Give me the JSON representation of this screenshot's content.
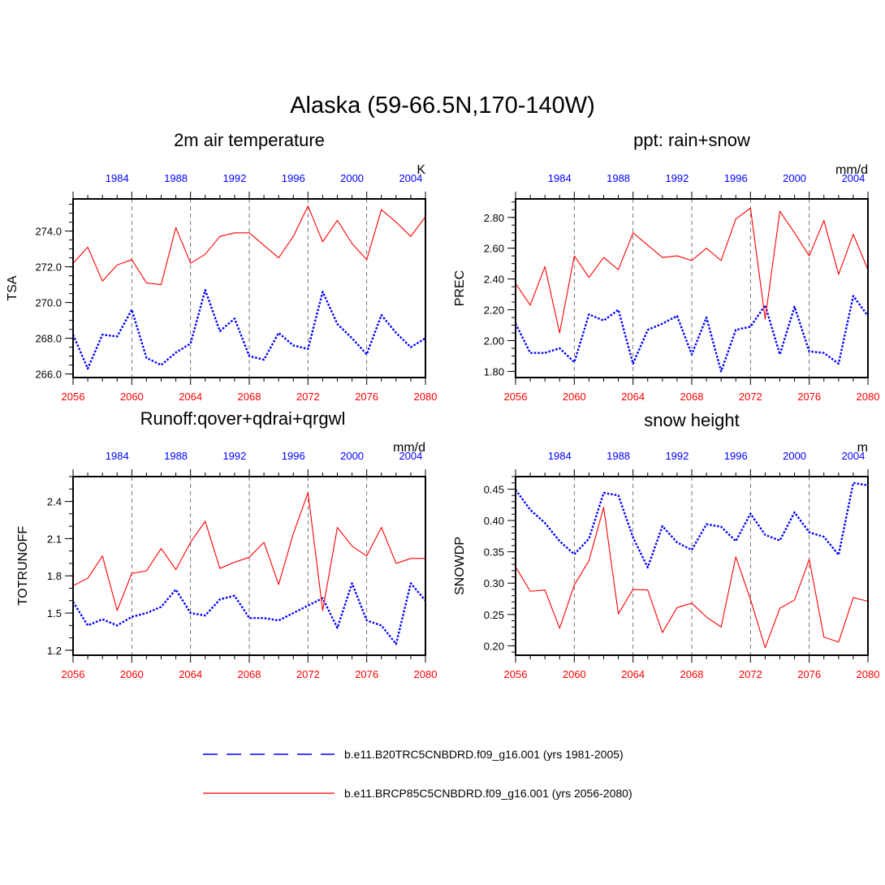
{
  "title": "Alaska (59-66.5N,170-140W)",
  "legend": [
    {
      "label": "b.e11.B20TRC5CNBDRD.f09_g16.001 (yrs 1981-2005)",
      "color": "#0000ff",
      "style": "dashed"
    },
    {
      "label": "b.e11.BRCP85C5CNBDRD.f09_g16.001 (yrs 2056-2080)",
      "color": "#ff0000",
      "style": "solid"
    }
  ],
  "chart_data": [
    {
      "type": "line",
      "title": "2m air temperature",
      "units": "K",
      "ylabel": "TSA",
      "ylim": [
        265.8,
        275.8
      ],
      "yticks": [
        266.0,
        268.0,
        270.0,
        272.0,
        274.0
      ],
      "ytick_labels": [
        "266.0",
        "268.0",
        "270.0",
        "272.0",
        "274.0"
      ],
      "yminor": 0.5,
      "x_bottom_labels": [
        "2056",
        "2060",
        "2064",
        "2068",
        "2072",
        "2076",
        "2080"
      ],
      "x_top_labels": [
        "1984",
        "1988",
        "1992",
        "1996",
        "2000",
        "2004"
      ],
      "series": [
        {
          "name": "b.e11.B20TRC5CNBDRD.f09_g16.001 (yrs 1981-2005)",
          "color": "#0000ff",
          "style": "dotted",
          "values": [
            268.2,
            266.3,
            268.2,
            268.1,
            269.6,
            266.9,
            266.5,
            267.2,
            267.7,
            270.7,
            268.4,
            269.1,
            267.0,
            266.8,
            268.3,
            267.6,
            267.4,
            270.6,
            268.8,
            268.0,
            267.1,
            269.3,
            268.3,
            267.5,
            268.0
          ]
        },
        {
          "name": "b.e11.BRCP85C5CNBDRD.f09_g16.001 (yrs 2056-2080)",
          "color": "#ff0000",
          "style": "solid",
          "values": [
            272.2,
            273.1,
            271.2,
            272.1,
            272.4,
            271.1,
            271.0,
            274.2,
            272.2,
            272.7,
            273.7,
            273.9,
            273.9,
            273.2,
            272.5,
            273.7,
            275.4,
            273.4,
            274.6,
            273.3,
            272.4,
            275.2,
            274.5,
            273.7,
            274.8
          ]
        }
      ]
    },
    {
      "type": "line",
      "title": "ppt: rain+snow",
      "units": "mm/d",
      "ylabel": "PREC",
      "ylim": [
        1.76,
        2.92
      ],
      "yticks": [
        1.8,
        2.0,
        2.2,
        2.4,
        2.6,
        2.8
      ],
      "ytick_labels": [
        "1.80",
        "2.00",
        "2.20",
        "2.40",
        "2.60",
        "2.80"
      ],
      "yminor": 0.05,
      "x_bottom_labels": [
        "2056",
        "2060",
        "2064",
        "2068",
        "2072",
        "2076",
        "2080"
      ],
      "x_top_labels": [
        "1984",
        "1988",
        "1992",
        "1996",
        "2000",
        "2004"
      ],
      "series": [
        {
          "name": "b.e11.B20TRC5CNBDRD.f09_g16.001 (yrs 1981-2005)",
          "color": "#0000ff",
          "style": "dotted",
          "values": [
            2.11,
            1.92,
            1.92,
            1.95,
            1.86,
            2.17,
            2.13,
            2.2,
            1.85,
            2.07,
            2.11,
            2.16,
            1.91,
            2.15,
            1.8,
            2.07,
            2.09,
            2.23,
            1.91,
            2.22,
            1.93,
            1.92,
            1.85,
            2.29,
            2.16
          ]
        },
        {
          "name": "b.e11.BRCP85C5CNBDRD.f09_g16.001 (yrs 2056-2080)",
          "color": "#ff0000",
          "style": "solid",
          "values": [
            2.37,
            2.23,
            2.48,
            2.05,
            2.55,
            2.41,
            2.54,
            2.46,
            2.7,
            2.62,
            2.54,
            2.55,
            2.52,
            2.6,
            2.52,
            2.79,
            2.86,
            2.14,
            2.84,
            2.7,
            2.55,
            2.78,
            2.43,
            2.69,
            2.46
          ]
        }
      ]
    },
    {
      "type": "line",
      "title": "Runoff:qover+qdrai+qrgwl",
      "units": "mm/d",
      "ylabel": "TOTRUNOFF",
      "ylim": [
        1.16,
        2.6
      ],
      "yticks": [
        1.2,
        1.5,
        1.8,
        2.1,
        2.4
      ],
      "ytick_labels": [
        "1.2",
        "1.5",
        "1.8",
        "2.1",
        "2.4"
      ],
      "yminor": 0.1,
      "x_bottom_labels": [
        "2056",
        "2060",
        "2064",
        "2068",
        "2072",
        "2076",
        "2080"
      ],
      "x_top_labels": [
        "1984",
        "1988",
        "1992",
        "1996",
        "2000",
        "2004"
      ],
      "series": [
        {
          "name": "b.e11.B20TRC5CNBDRD.f09_g16.001 (yrs 1981-2005)",
          "color": "#0000ff",
          "style": "dotted",
          "values": [
            1.59,
            1.4,
            1.45,
            1.4,
            1.47,
            1.5,
            1.55,
            1.69,
            1.5,
            1.48,
            1.61,
            1.64,
            1.46,
            1.46,
            1.44,
            1.5,
            1.56,
            1.62,
            1.38,
            1.74,
            1.44,
            1.4,
            1.25,
            1.74,
            1.6
          ]
        },
        {
          "name": "b.e11.BRCP85C5CNBDRD.f09_g16.001 (yrs 2056-2080)",
          "color": "#ff0000",
          "style": "solid",
          "values": [
            1.72,
            1.78,
            1.96,
            1.52,
            1.82,
            1.84,
            2.02,
            1.85,
            2.07,
            2.24,
            1.86,
            1.91,
            1.95,
            2.07,
            1.73,
            2.14,
            2.47,
            1.52,
            2.19,
            2.04,
            1.96,
            2.19,
            1.9,
            1.94,
            1.94
          ]
        }
      ]
    },
    {
      "type": "line",
      "title": "snow height",
      "units": "m",
      "ylabel": "SNOWDP",
      "ylim": [
        0.185,
        0.47
      ],
      "yticks": [
        0.2,
        0.25,
        0.3,
        0.35,
        0.4,
        0.45
      ],
      "ytick_labels": [
        "0.20",
        "0.25",
        "0.30",
        "0.35",
        "0.40",
        "0.45"
      ],
      "yminor": 0.01,
      "x_bottom_labels": [
        "2056",
        "2060",
        "2064",
        "2068",
        "2072",
        "2076",
        "2080"
      ],
      "x_top_labels": [
        "1984",
        "1988",
        "1992",
        "1996",
        "2000",
        "2004"
      ],
      "series": [
        {
          "name": "b.e11.B20TRC5CNBDRD.f09_g16.001 (yrs 1981-2005)",
          "color": "#0000ff",
          "style": "dotted",
          "values": [
            0.449,
            0.417,
            0.396,
            0.367,
            0.346,
            0.371,
            0.444,
            0.44,
            0.373,
            0.325,
            0.391,
            0.365,
            0.353,
            0.394,
            0.39,
            0.367,
            0.411,
            0.377,
            0.368,
            0.413,
            0.381,
            0.374,
            0.345,
            0.46,
            0.456
          ]
        },
        {
          "name": "b.e11.BRCP85C5CNBDRD.f09_g16.001 (yrs 2056-2080)",
          "color": "#ff0000",
          "style": "solid",
          "values": [
            0.326,
            0.287,
            0.289,
            0.228,
            0.297,
            0.336,
            0.421,
            0.251,
            0.29,
            0.289,
            0.221,
            0.261,
            0.268,
            0.246,
            0.23,
            0.342,
            0.274,
            0.197,
            0.26,
            0.273,
            0.338,
            0.214,
            0.206,
            0.277,
            0.271
          ]
        }
      ]
    }
  ]
}
